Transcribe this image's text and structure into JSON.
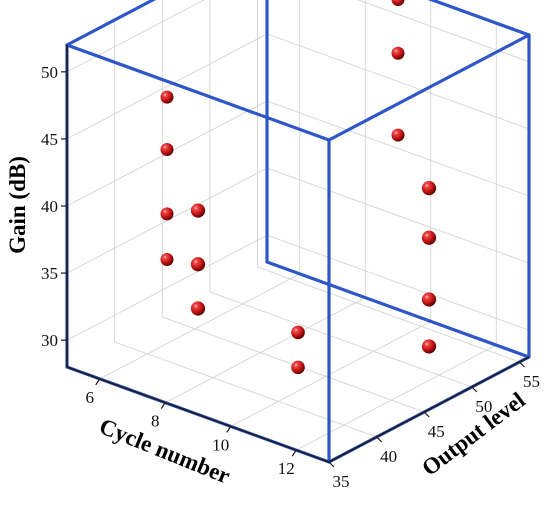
{
  "chart_data": {
    "type": "scatter",
    "projection": "3d",
    "axes": {
      "x": {
        "label": "Cycle number",
        "range": [
          5,
          13
        ],
        "ticks": [
          6,
          8,
          10,
          12
        ]
      },
      "y": {
        "label": "Output level",
        "range": [
          35,
          56
        ],
        "ticks": [
          35,
          40,
          45,
          50,
          55
        ]
      },
      "z": {
        "label": "Gain (dB)",
        "range": [
          28,
          52
        ],
        "ticks": [
          30,
          35,
          40,
          45,
          50
        ]
      }
    },
    "grid": true,
    "point_color": "#c41414",
    "box_color": "#2f56c9",
    "points": [
      {
        "x": 5,
        "y": 45.5,
        "z": 44.2
      },
      {
        "x": 5,
        "y": 45.5,
        "z": 40.3
      },
      {
        "x": 5,
        "y": 45.5,
        "z": 35.5
      },
      {
        "x": 5,
        "y": 45.5,
        "z": 32.1
      },
      {
        "x": 13,
        "y": 45.5,
        "z": 44.5
      },
      {
        "x": 13,
        "y": 45.5,
        "z": 40.8
      },
      {
        "x": 13,
        "y": 45.5,
        "z": 36.2
      },
      {
        "x": 13,
        "y": 45.5,
        "z": 32.7
      },
      {
        "x": 9,
        "y": 35,
        "z": 43.2
      },
      {
        "x": 9,
        "y": 35,
        "z": 39.2
      },
      {
        "x": 9,
        "y": 35,
        "z": 35.9
      },
      {
        "x": 9,
        "y": 56,
        "z": 51.1
      },
      {
        "x": 9,
        "y": 56,
        "z": 47.1
      },
      {
        "x": 9,
        "y": 56,
        "z": 41.0
      },
      {
        "x": 9,
        "y": 45.5,
        "z": 30.2
      },
      {
        "x": 9,
        "y": 45.5,
        "z": 27.6
      }
    ]
  }
}
